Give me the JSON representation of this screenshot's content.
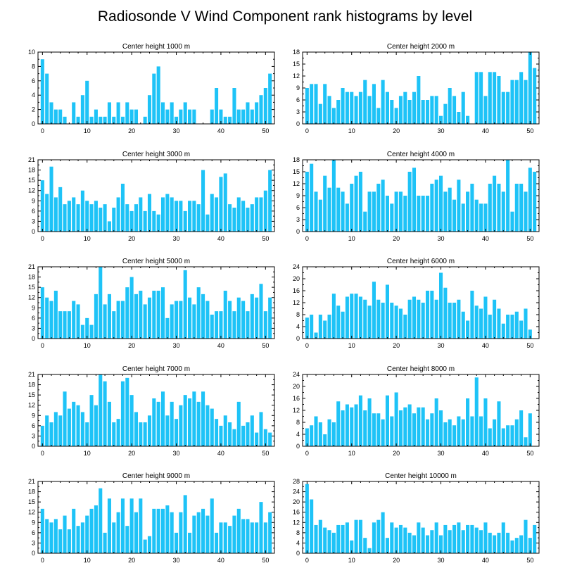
{
  "title": "Radiosonde V Wind Component rank histograms by level",
  "bar_color": "#1ec3f7",
  "chart_data": [
    {
      "type": "bar",
      "title": "Center height 1000 m",
      "xlim": [
        -1,
        52
      ],
      "ylim": [
        0,
        10
      ],
      "yticks": [
        0,
        2,
        4,
        6,
        8,
        10
      ],
      "xticks": [
        0,
        10,
        20,
        30,
        40,
        50
      ],
      "values": [
        9,
        7,
        3,
        2,
        2,
        1,
        0,
        3,
        1,
        4,
        6,
        1,
        2,
        1,
        1,
        3,
        1,
        3,
        1,
        3,
        2,
        2,
        0,
        1,
        4,
        7,
        8,
        3,
        2,
        3,
        1,
        2,
        3,
        2,
        2,
        0,
        0,
        0,
        2,
        5,
        2,
        1,
        1,
        5,
        2,
        2,
        3,
        2,
        3,
        4,
        5,
        7
      ]
    },
    {
      "type": "bar",
      "title": "Center height 2000 m",
      "xlim": [
        -1,
        52
      ],
      "ylim": [
        0,
        18
      ],
      "yticks": [
        0,
        3,
        6,
        9,
        12,
        15,
        18
      ],
      "xticks": [
        0,
        10,
        20,
        30,
        40,
        50
      ],
      "values": [
        9,
        10,
        10,
        5,
        10,
        7,
        4,
        6,
        9,
        8,
        8,
        7,
        8,
        11,
        7,
        10,
        4,
        11,
        8,
        6,
        4,
        7,
        8,
        6,
        8,
        12,
        6,
        6,
        7,
        7,
        2,
        5,
        9,
        7,
        3,
        8,
        2,
        0,
        13,
        13,
        7,
        13,
        13,
        12,
        8,
        8,
        11,
        11,
        13,
        11,
        18,
        14
      ]
    },
    {
      "type": "bar",
      "title": "Center height 3000 m",
      "xlim": [
        -1,
        52
      ],
      "ylim": [
        0,
        21
      ],
      "yticks": [
        0,
        3,
        6,
        9,
        12,
        15,
        18,
        21
      ],
      "xticks": [
        0,
        10,
        20,
        30,
        40,
        50
      ],
      "values": [
        15,
        11,
        19,
        10,
        13,
        8,
        9,
        10,
        8,
        12,
        9,
        8,
        9,
        7,
        8,
        3,
        7,
        10,
        14,
        8,
        6,
        8,
        10,
        6,
        11,
        6,
        5,
        10,
        11,
        10,
        9,
        9,
        6,
        9,
        9,
        8,
        18,
        5,
        11,
        10,
        16,
        17,
        8,
        7,
        10,
        9,
        7,
        8,
        10,
        10,
        12,
        18
      ]
    },
    {
      "type": "bar",
      "title": "Center height 4000 m",
      "xlim": [
        -1,
        52
      ],
      "ylim": [
        0,
        18
      ],
      "yticks": [
        0,
        3,
        6,
        9,
        12,
        15,
        18
      ],
      "xticks": [
        0,
        10,
        20,
        30,
        40,
        50
      ],
      "values": [
        15,
        17,
        10,
        8,
        14,
        11,
        18,
        11,
        10,
        7,
        12,
        14,
        15,
        5,
        10,
        10,
        12,
        13,
        9,
        7,
        10,
        10,
        9,
        15,
        16,
        9,
        9,
        9,
        12,
        13,
        14,
        10,
        11,
        8,
        13,
        7,
        10,
        12,
        8,
        7,
        7,
        12,
        14,
        12,
        10,
        18,
        5,
        12,
        12,
        10,
        16,
        15
      ]
    },
    {
      "type": "bar",
      "title": "Center height 5000 m",
      "xlim": [
        -1,
        52
      ],
      "ylim": [
        0,
        21
      ],
      "yticks": [
        0,
        3,
        6,
        9,
        12,
        15,
        18,
        21
      ],
      "xticks": [
        0,
        10,
        20,
        30,
        40,
        50
      ],
      "values": [
        15,
        12,
        11,
        14,
        8,
        8,
        8,
        11,
        10,
        4,
        6,
        4,
        13,
        21,
        10,
        13,
        8,
        11,
        11,
        15,
        18,
        13,
        14,
        10,
        12,
        14,
        14,
        15,
        6,
        10,
        11,
        11,
        20,
        12,
        10,
        15,
        13,
        11,
        7,
        8,
        8,
        14,
        11,
        8,
        12,
        11,
        8,
        13,
        12,
        16,
        8,
        12
      ]
    },
    {
      "type": "bar",
      "title": "Center height 6000 m",
      "xlim": [
        -1,
        52
      ],
      "ylim": [
        0,
        24
      ],
      "yticks": [
        0,
        4,
        8,
        12,
        16,
        20,
        24
      ],
      "xticks": [
        0,
        10,
        20,
        30,
        40,
        50
      ],
      "values": [
        7,
        8,
        2,
        8,
        6,
        8,
        15,
        11,
        9,
        14,
        15,
        15,
        14,
        13,
        11,
        19,
        13,
        12,
        18,
        12,
        11,
        10,
        8,
        13,
        14,
        13,
        12,
        16,
        16,
        13,
        22,
        17,
        12,
        12,
        13,
        9,
        6,
        16,
        11,
        10,
        14,
        8,
        13,
        10,
        5,
        8,
        8,
        9,
        6,
        10,
        3,
        0
      ]
    },
    {
      "type": "bar",
      "title": "Center height 7000 m",
      "xlim": [
        -1,
        52
      ],
      "ylim": [
        0,
        21
      ],
      "yticks": [
        0,
        3,
        6,
        9,
        12,
        15,
        18,
        21
      ],
      "xticks": [
        0,
        10,
        20,
        30,
        40,
        50
      ],
      "values": [
        6,
        9,
        7,
        10,
        9,
        16,
        11,
        13,
        12,
        10,
        7,
        15,
        12,
        21,
        19,
        13,
        7,
        8,
        19,
        20,
        15,
        10,
        7,
        7,
        9,
        14,
        13,
        16,
        9,
        13,
        8,
        12,
        15,
        14,
        16,
        13,
        16,
        12,
        11,
        8,
        6,
        9,
        7,
        5,
        13,
        6,
        7,
        9,
        4,
        10,
        5,
        4
      ]
    },
    {
      "type": "bar",
      "title": "Center height 8000 m",
      "xlim": [
        -1,
        52
      ],
      "ylim": [
        0,
        24
      ],
      "yticks": [
        0,
        4,
        8,
        12,
        16,
        20,
        24
      ],
      "xticks": [
        0,
        10,
        20,
        30,
        40,
        50
      ],
      "values": [
        6,
        7,
        10,
        8,
        4,
        9,
        8,
        15,
        12,
        14,
        13,
        14,
        17,
        12,
        16,
        11,
        11,
        9,
        17,
        10,
        18,
        12,
        13,
        14,
        11,
        13,
        13,
        9,
        11,
        16,
        12,
        8,
        9,
        7,
        10,
        9,
        16,
        10,
        23,
        10,
        16,
        6,
        9,
        15,
        6,
        7,
        7,
        9,
        12,
        3,
        11,
        0
      ]
    },
    {
      "type": "bar",
      "title": "Center height 9000 m",
      "xlim": [
        -1,
        52
      ],
      "ylim": [
        0,
        21
      ],
      "yticks": [
        0,
        3,
        6,
        9,
        12,
        15,
        18,
        21
      ],
      "xticks": [
        0,
        10,
        20,
        30,
        40,
        50
      ],
      "values": [
        13,
        10,
        9,
        10,
        7,
        11,
        7,
        13,
        8,
        9,
        11,
        13,
        14,
        19,
        6,
        16,
        9,
        12,
        16,
        8,
        16,
        12,
        16,
        4,
        5,
        13,
        13,
        13,
        14,
        12,
        6,
        12,
        17,
        6,
        11,
        12,
        13,
        11,
        16,
        6,
        9,
        9,
        8,
        11,
        13,
        10,
        10,
        9,
        9,
        15,
        9,
        12
      ]
    },
    {
      "type": "bar",
      "title": "Center height 10000 m",
      "xlim": [
        -1,
        52
      ],
      "ylim": [
        0,
        28
      ],
      "yticks": [
        0,
        4,
        8,
        12,
        16,
        20,
        24,
        28
      ],
      "xticks": [
        0,
        10,
        20,
        30,
        40,
        50
      ],
      "values": [
        27,
        21,
        11,
        13,
        10,
        9,
        8,
        11,
        11,
        12,
        5,
        13,
        13,
        6,
        2,
        12,
        13,
        16,
        6,
        12,
        10,
        11,
        10,
        8,
        7,
        12,
        10,
        7,
        9,
        12,
        7,
        11,
        9,
        11,
        12,
        9,
        11,
        11,
        10,
        9,
        12,
        8,
        7,
        8,
        12,
        8,
        5,
        6,
        7,
        13,
        6,
        11
      ]
    }
  ]
}
